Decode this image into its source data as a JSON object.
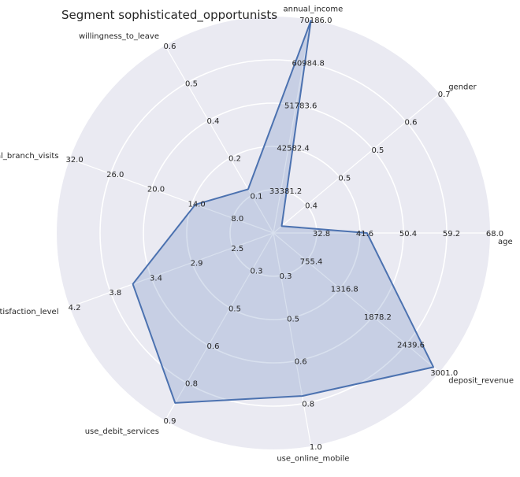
{
  "chart_data": {
    "type": "radar",
    "title": "Segment sophisticated_opportunists",
    "grid": true,
    "axes": [
      {
        "name": "age",
        "ticks": [
          "32.8",
          "41.6",
          "50.4",
          "59.2",
          "68.0"
        ],
        "min": 24.0,
        "max": 68.0,
        "value": 43.0
      },
      {
        "name": "gender",
        "ticks": [
          "0.4",
          "0.5",
          "0.5",
          "0.6",
          "0.7"
        ],
        "min": 0.3,
        "max": 0.7,
        "value": 0.32
      },
      {
        "name": "annual_income",
        "ticks": [
          "33381.2",
          "42582.4",
          "51783.6",
          "60984.8",
          "70186.0"
        ],
        "min": 24180.0,
        "max": 70186.0,
        "value": 70000.0
      },
      {
        "name": "willingness_to_leave",
        "ticks": [
          "0.1",
          "0.2",
          "0.4",
          "0.5",
          "0.6"
        ],
        "min": 0.0,
        "max": 0.6,
        "value": 0.14
      },
      {
        "name": "annual_branch_visits",
        "ticks": [
          "8.0",
          "14.0",
          "20.0",
          "26.0",
          "32.0"
        ],
        "min": 2.0,
        "max": 32.0,
        "value": 13.5
      },
      {
        "name": "service_satisfaction_level",
        "ticks": [
          "2.5",
          "2.9",
          "3.4",
          "3.8",
          "4.2"
        ],
        "min": 2.1,
        "max": 4.2,
        "value": 3.55
      },
      {
        "name": "use_debit_services",
        "ticks": [
          "0.3",
          "0.5",
          "0.6",
          "0.8",
          "0.9"
        ],
        "min": 0.15,
        "max": 0.9,
        "value": 0.83
      },
      {
        "name": "use_online_mobile",
        "ticks": [
          "0.3",
          "0.5",
          "0.6",
          "0.8",
          "1.0"
        ],
        "min": 0.15,
        "max": 1.0,
        "value": 0.8
      },
      {
        "name": "deposit_revenue",
        "ticks": [
          "755.4",
          "1316.8",
          "1878.2",
          "2439.6",
          "3001.0"
        ],
        "min": 194.0,
        "max": 3001.0,
        "value": 2900.0
      }
    ],
    "series": [
      {
        "values": [
          43.0,
          0.32,
          70000.0,
          0.14,
          13.5,
          3.55,
          0.83,
          0.8,
          2900.0
        ]
      }
    ],
    "colors": {
      "background": "#eaeaf2",
      "grid": "#ffffff",
      "line": "#4c72b0",
      "fill": "#4c72b0"
    }
  }
}
